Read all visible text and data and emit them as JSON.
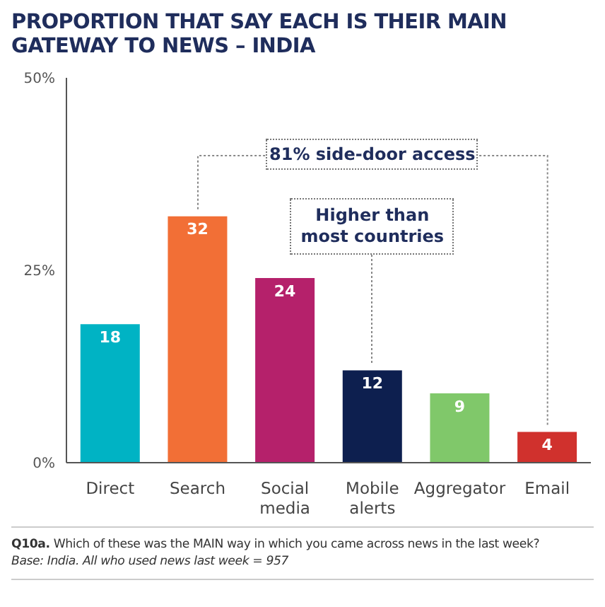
{
  "chart_data": {
    "type": "bar",
    "title": "PROPORTION THAT SAY EACH IS THEIR MAIN GATEWAY TO NEWS – INDIA",
    "categories": [
      "Direct",
      "Search",
      "Social media",
      "Mobile alerts",
      "Aggregator",
      "Email"
    ],
    "values": [
      18,
      32,
      24,
      12,
      9,
      4
    ],
    "colors": [
      "#00b3c4",
      "#f26f36",
      "#b5216b",
      "#0d1f4f",
      "#80c86a",
      "#d0312d"
    ],
    "ylim": [
      0,
      50
    ],
    "yticks": [
      {
        "value": 0,
        "label": "0%"
      },
      {
        "value": 25,
        "label": "25%"
      },
      {
        "value": 50,
        "label": "50%"
      }
    ],
    "data_labels": true,
    "annotations": [
      "81% side-door access",
      {
        "text": "Higher than most countries",
        "x": "Mobile alerts",
        "y": 12
      },
      "Q10a. Which of these was the MAIN way in which you came across news in the last week?",
      "Base: India. All who used news last week = 957"
    ]
  }
}
